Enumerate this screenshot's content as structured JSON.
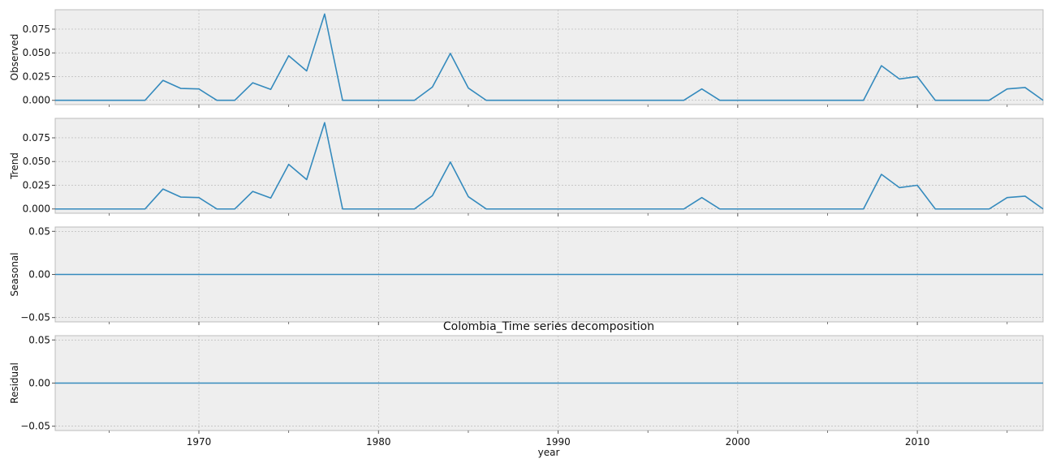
{
  "chart_data": {
    "type": "line",
    "title": "Colombia_Time series decomposition",
    "xlabel": "year",
    "xlim": [
      1962,
      2017
    ],
    "x_ticks": [
      1970,
      1980,
      1990,
      2000,
      2010
    ],
    "x_minor_ticks": [
      1965,
      1975,
      1985,
      1995,
      2005,
      2015
    ],
    "x": [
      1962,
      1963,
      1964,
      1965,
      1966,
      1967,
      1968,
      1969,
      1970,
      1971,
      1972,
      1973,
      1974,
      1975,
      1976,
      1977,
      1978,
      1979,
      1980,
      1981,
      1982,
      1983,
      1984,
      1985,
      1986,
      1987,
      1988,
      1989,
      1990,
      1991,
      1992,
      1993,
      1994,
      1995,
      1996,
      1997,
      1998,
      1999,
      2000,
      2001,
      2002,
      2003,
      2004,
      2005,
      2006,
      2007,
      2008,
      2009,
      2010,
      2011,
      2012,
      2013,
      2014,
      2015,
      2016,
      2017
    ],
    "grid": true,
    "line_color": "#348abd",
    "background_color": "#eeeeee",
    "panels": [
      {
        "ylabel": "Observed",
        "ylim": [
          -0.0045,
          0.0955
        ],
        "y_ticks": [
          0.0,
          0.025,
          0.05,
          0.075
        ],
        "y_tick_labels": [
          "0.000",
          "0.025",
          "0.050",
          "0.075"
        ],
        "values": [
          0,
          0,
          0,
          0,
          0,
          0,
          0.021,
          0.0125,
          0.012,
          0,
          0,
          0.0185,
          0.0115,
          0.047,
          0.031,
          0.091,
          0,
          0,
          0,
          0,
          0,
          0.014,
          0.0495,
          0.013,
          0,
          0,
          0,
          0,
          0,
          0,
          0,
          0,
          0,
          0,
          0,
          0,
          0.012,
          0,
          0,
          0,
          0,
          0,
          0,
          0,
          0,
          0,
          0.0365,
          0.0225,
          0.025,
          0,
          0,
          0,
          0,
          0.012,
          0.0135,
          0
        ]
      },
      {
        "ylabel": "Trend",
        "ylim": [
          -0.0045,
          0.0955
        ],
        "y_ticks": [
          0.0,
          0.025,
          0.05,
          0.075
        ],
        "y_tick_labels": [
          "0.000",
          "0.025",
          "0.050",
          "0.075"
        ],
        "values": [
          0,
          0,
          0,
          0,
          0,
          0,
          0.021,
          0.0125,
          0.012,
          0,
          0,
          0.0185,
          0.0115,
          0.047,
          0.031,
          0.091,
          0,
          0,
          0,
          0,
          0,
          0.014,
          0.0495,
          0.013,
          0,
          0,
          0,
          0,
          0,
          0,
          0,
          0,
          0,
          0,
          0,
          0,
          0.012,
          0,
          0,
          0,
          0,
          0,
          0,
          0,
          0,
          0,
          0.0365,
          0.0225,
          0.025,
          0,
          0,
          0,
          0,
          0.012,
          0.0135,
          0
        ]
      },
      {
        "ylabel": "Seasonal",
        "ylim": [
          -0.055,
          0.055
        ],
        "y_ticks": [
          -0.05,
          0.0,
          0.05
        ],
        "y_tick_labels": [
          "−0.05",
          "0.00",
          "0.05"
        ],
        "values": [
          0,
          0,
          0,
          0,
          0,
          0,
          0,
          0,
          0,
          0,
          0,
          0,
          0,
          0,
          0,
          0,
          0,
          0,
          0,
          0,
          0,
          0,
          0,
          0,
          0,
          0,
          0,
          0,
          0,
          0,
          0,
          0,
          0,
          0,
          0,
          0,
          0,
          0,
          0,
          0,
          0,
          0,
          0,
          0,
          0,
          0,
          0,
          0,
          0,
          0,
          0,
          0,
          0,
          0,
          0,
          0
        ]
      },
      {
        "ylabel": "Residual",
        "ylim": [
          -0.055,
          0.055
        ],
        "y_ticks": [
          -0.05,
          0.0,
          0.05
        ],
        "y_tick_labels": [
          "−0.05",
          "0.00",
          "0.05"
        ],
        "values": [
          0,
          0,
          0,
          0,
          0,
          0,
          0,
          0,
          0,
          0,
          0,
          0,
          0,
          0,
          0,
          0,
          0,
          0,
          0,
          0,
          0,
          0,
          0,
          0,
          0,
          0,
          0,
          0,
          0,
          0,
          0,
          0,
          0,
          0,
          0,
          0,
          0,
          0,
          0,
          0,
          0,
          0,
          0,
          0,
          0,
          0,
          0,
          0,
          0,
          0,
          0,
          0,
          0,
          0,
          0,
          0
        ]
      }
    ]
  }
}
